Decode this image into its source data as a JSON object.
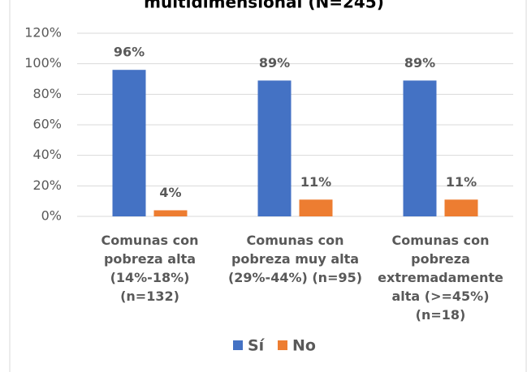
{
  "chart_data": {
    "type": "bar",
    "title": "multidimensional (N=245)",
    "categories": [
      "Comunas con pobreza alta (14%-18%) (n=132)",
      "Comunas con pobreza muy alta (29%-44%) (n=95)",
      "Comunas con pobreza extremadamente alta (>=45%) (n=18)"
    ],
    "series": [
      {
        "name": "Sí",
        "color": "#4472c4",
        "values": [
          96,
          89,
          89
        ],
        "value_labels": [
          "96%",
          "89%",
          "89%"
        ]
      },
      {
        "name": "No",
        "color": "#ed7d31",
        "values": [
          4,
          11,
          11
        ],
        "value_labels": [
          "4%",
          "11%",
          "11%"
        ]
      }
    ],
    "ylim": [
      0,
      120
    ],
    "yticks": [
      {
        "value": 0,
        "label": "0%"
      },
      {
        "value": 20,
        "label": "20%"
      },
      {
        "value": 40,
        "label": "40%"
      },
      {
        "value": 60,
        "label": "60%"
      },
      {
        "value": 80,
        "label": "80%"
      },
      {
        "value": 100,
        "label": "100%"
      },
      {
        "value": 120,
        "label": "120%"
      }
    ],
    "grid": true,
    "legend": "bottom"
  }
}
